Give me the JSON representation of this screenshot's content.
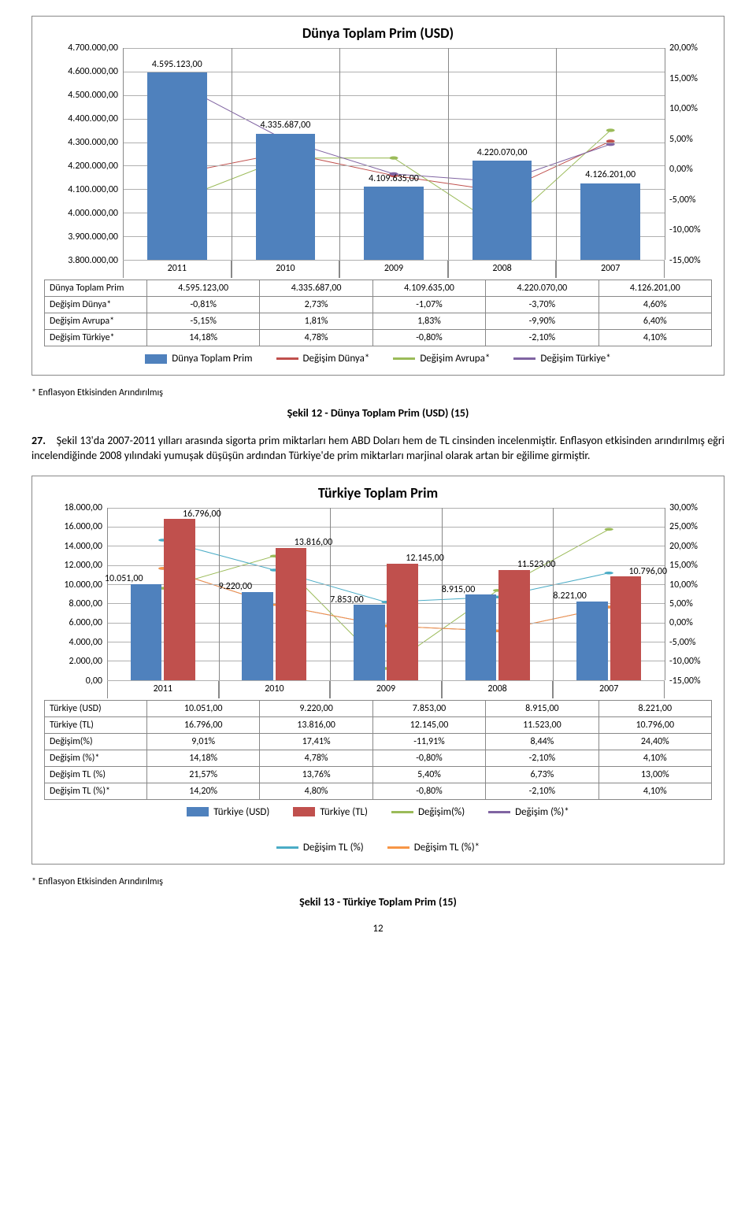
{
  "colors": {
    "bar_blue": "#4f81bd",
    "bar_red": "#c0504d",
    "line_red": "#c0504d",
    "line_green": "#9bbb59",
    "line_purple": "#8064a2",
    "line_teal": "#4bacc6",
    "line_orange": "#f79646",
    "grid": "#b0b0b0",
    "border": "#888888"
  },
  "chart1": {
    "title": "Dünya Toplam Prim (USD)",
    "categories": [
      "2011",
      "2010",
      "2009",
      "2008",
      "2007"
    ],
    "y_left": {
      "min": 3800000,
      "max": 4700000,
      "step": 100000,
      "labels": [
        "4.700.000,00",
        "4.600.000,00",
        "4.500.000,00",
        "4.400.000,00",
        "4.300.000,00",
        "4.200.000,00",
        "4.100.000,00",
        "4.000.000,00",
        "3.900.000,00",
        "3.800.000,00"
      ]
    },
    "y_right": {
      "min": -15,
      "max": 20,
      "step": 5,
      "labels": [
        "20,00%",
        "15,00%",
        "10,00%",
        "5,00%",
        "0,00%",
        "-5,00%",
        "-10,00%",
        "-15,00%"
      ]
    },
    "bars": {
      "label": "Dünya Toplam Prim",
      "values": [
        4595123,
        4335687,
        4109635,
        4220070,
        4126201
      ],
      "display": [
        "4.595.123,00",
        "4.335.687,00",
        "4.109.635,00",
        "4.220.070,00",
        "4.126.201,00"
      ],
      "color": "#4f81bd",
      "width": 0.55
    },
    "lines": [
      {
        "label": "Değişim Dünya*",
        "color": "#c0504d",
        "values": [
          -0.81,
          2.73,
          -1.07,
          -3.7,
          4.6
        ]
      },
      {
        "label": "Değişim Avrupa*",
        "color": "#9bbb59",
        "values": [
          -5.15,
          1.81,
          1.83,
          -9.9,
          6.4
        ]
      },
      {
        "label": "Değişim Türkiye*",
        "color": "#8064a2",
        "values": [
          14.18,
          4.78,
          -0.8,
          -2.1,
          4.1
        ]
      }
    ],
    "table_rows": [
      {
        "label": "Dünya Toplam Prim",
        "cells": [
          "4.595.123,00",
          "4.335.687,00",
          "4.109.635,00",
          "4.220.070,00",
          "4.126.201,00"
        ]
      },
      {
        "label": "Değişim Dünya*",
        "cells": [
          "-0,81%",
          "2,73%",
          "-1,07%",
          "-3,70%",
          "4,60%"
        ]
      },
      {
        "label": "Değişim Avrupa*",
        "cells": [
          "-5,15%",
          "1,81%",
          "1,83%",
          "-9,90%",
          "6,40%"
        ]
      },
      {
        "label": "Değişim Türkiye*",
        "cells": [
          "14,18%",
          "4,78%",
          "-0,80%",
          "-2,10%",
          "4,10%"
        ]
      }
    ],
    "legend": [
      {
        "type": "bar",
        "color": "#4f81bd",
        "label": "Dünya Toplam Prim"
      },
      {
        "type": "line",
        "color": "#c0504d",
        "label": "Değişim Dünya*"
      },
      {
        "type": "line",
        "color": "#9bbb59",
        "label": "Değişim Avrupa*"
      },
      {
        "type": "line",
        "color": "#8064a2",
        "label": "Değişim Türkiye*"
      }
    ]
  },
  "footnote": "* Enflasyon Etkisinden Arındırılmış",
  "caption1": "Şekil 12 - Dünya Toplam Prim (USD) (15)",
  "para_prefix": "27.",
  "para_body": "Şekil 13'da 2007-2011 yılları arasında sigorta prim miktarları hem ABD Doları hem de TL cinsinden incelenmiştir. Enflasyon etkisinden arındırılmış eğri incelendiğinde 2008 yılındaki yumuşak düşüşün ardından Türkiye'de prim miktarları marjinal olarak artan bir eğilime girmiştir.",
  "chart2": {
    "title": "Türkiye Toplam Prim",
    "categories": [
      "2011",
      "2010",
      "2009",
      "2008",
      "2007"
    ],
    "y_left": {
      "min": 0,
      "max": 18000,
      "step": 2000,
      "labels": [
        "18.000,00",
        "16.000,00",
        "14.000,00",
        "12.000,00",
        "10.000,00",
        "8.000,00",
        "6.000,00",
        "4.000,00",
        "2.000,00",
        "0,00"
      ]
    },
    "y_right": {
      "min": -15,
      "max": 30,
      "step": 5,
      "labels": [
        "30,00%",
        "25,00%",
        "20,00%",
        "15,00%",
        "10,00%",
        "5,00%",
        "0,00%",
        "-5,00%",
        "-10,00%",
        "-15,00%"
      ]
    },
    "bars_usd": {
      "label": "Türkiye (USD)",
      "values": [
        10051,
        9220,
        7853,
        8915,
        8221
      ],
      "display": [
        "10.051,00",
        "9.220,00",
        "7.853,00",
        "8.915,00",
        "8.221,00"
      ],
      "color": "#4f81bd"
    },
    "bars_tl": {
      "label": "Türkiye (TL)",
      "values": [
        16796,
        13816,
        12145,
        11523,
        10796
      ],
      "display": [
        "16.796,00",
        "13.816,00",
        "12.145,00",
        "11.523,00",
        "10.796,00"
      ],
      "color": "#c0504d"
    },
    "lines": [
      {
        "label": "Değişim(%)",
        "color": "#9bbb59",
        "values": [
          9.01,
          17.41,
          -11.91,
          8.44,
          24.4
        ]
      },
      {
        "label": "Değişim (%)*",
        "color": "#8064a2",
        "values": [
          14.18,
          4.78,
          -0.8,
          -2.1,
          4.1
        ]
      },
      {
        "label": "Değişim TL (%)",
        "color": "#4bacc6",
        "values": [
          21.57,
          13.76,
          5.4,
          6.73,
          13.0
        ]
      },
      {
        "label": "Değişim TL (%)*",
        "color": "#f79646",
        "values": [
          14.2,
          4.8,
          -0.8,
          -2.1,
          4.1
        ]
      }
    ],
    "table_rows": [
      {
        "label": "Türkiye (USD)",
        "cells": [
          "10.051,00",
          "9.220,00",
          "7.853,00",
          "8.915,00",
          "8.221,00"
        ]
      },
      {
        "label": "Türkiye (TL)",
        "cells": [
          "16.796,00",
          "13.816,00",
          "12.145,00",
          "11.523,00",
          "10.796,00"
        ]
      },
      {
        "label": "Değişim(%)",
        "cells": [
          "9,01%",
          "17,41%",
          "-11,91%",
          "8,44%",
          "24,40%"
        ]
      },
      {
        "label": "Değişim (%)*",
        "cells": [
          "14,18%",
          "4,78%",
          "-0,80%",
          "-2,10%",
          "4,10%"
        ]
      },
      {
        "label": "Değişim TL (%)",
        "cells": [
          "21,57%",
          "13,76%",
          "5,40%",
          "6,73%",
          "13,00%"
        ]
      },
      {
        "label": "Değişim TL (%)*",
        "cells": [
          "14,20%",
          "4,80%",
          "-0,80%",
          "-2,10%",
          "4,10%"
        ]
      }
    ],
    "legend": [
      {
        "type": "bar",
        "color": "#4f81bd",
        "label": "Türkiye (USD)"
      },
      {
        "type": "bar",
        "color": "#c0504d",
        "label": "Türkiye (TL)"
      },
      {
        "type": "line",
        "color": "#9bbb59",
        "label": "Değişim(%)"
      },
      {
        "type": "line",
        "color": "#8064a2",
        "label": "Değişim (%)*"
      },
      {
        "type": "line",
        "color": "#4bacc6",
        "label": "Değişim TL (%)"
      },
      {
        "type": "line",
        "color": "#f79646",
        "label": "Değişim TL (%)*"
      }
    ]
  },
  "caption2": "Şekil 13 - Türkiye Toplam Prim (15)",
  "page_number": "12"
}
